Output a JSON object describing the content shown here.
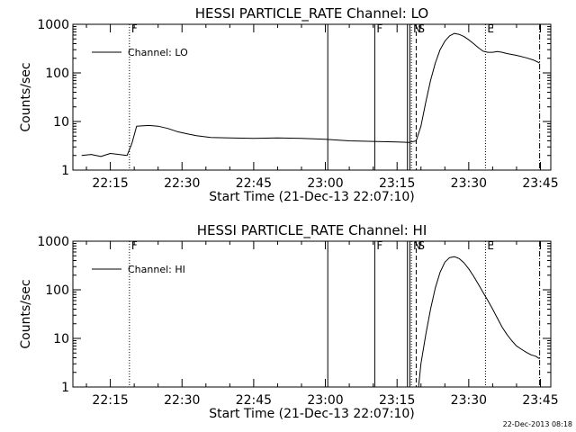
{
  "chart_data": [
    {
      "type": "line",
      "title": "HESSI PARTICLE_RATE Channel: LO",
      "xlabel": "Start Time (21-Dec-13 22:07:10)",
      "ylabel": "Counts/sec",
      "y_scale": "log",
      "ylim": [
        1,
        1000
      ],
      "xlim": [
        "22:07:10",
        "23:47:10"
      ],
      "x_ticks": [
        "22:15",
        "22:30",
        "22:45",
        "23:00",
        "23:15",
        "23:30",
        "23:45"
      ],
      "y_ticks": [
        "1",
        "10",
        "100",
        "1000"
      ],
      "legend": {
        "entries": [
          "Channel: LO"
        ],
        "position": "top-left"
      },
      "grid": false,
      "markers": [
        {
          "time": "22:19:00",
          "label": "F",
          "style": "dotted"
        },
        {
          "time": "23:00:30",
          "label": "",
          "style": "solid"
        },
        {
          "time": "23:10:20",
          "label": "F",
          "style": "solid"
        },
        {
          "time": "23:17:10",
          "label": "",
          "style": "solid"
        },
        {
          "time": "23:17:40",
          "label": "",
          "style": "solid"
        },
        {
          "time": "23:18:00",
          "label": "N",
          "style": "dotted"
        },
        {
          "time": "23:19:00",
          "label": "S",
          "style": "dashed"
        },
        {
          "time": "23:33:30",
          "label": "E",
          "style": "dotted"
        },
        {
          "time": "23:44:50",
          "label": "",
          "style": "dashdot"
        }
      ],
      "series": [
        {
          "name": "Channel: LO",
          "points": [
            [
              "22:09:00",
              2.0
            ],
            [
              "22:11:00",
              2.1
            ],
            [
              "22:13:00",
              1.9
            ],
            [
              "22:15:00",
              2.2
            ],
            [
              "22:18:30",
              2.0
            ],
            [
              "22:19:30",
              3.5
            ],
            [
              "22:20:30",
              8.0
            ],
            [
              "22:23:00",
              8.3
            ],
            [
              "22:25:00",
              8.0
            ],
            [
              "22:27:00",
              7.2
            ],
            [
              "22:29:00",
              6.2
            ],
            [
              "22:31:00",
              5.6
            ],
            [
              "22:33:00",
              5.1
            ],
            [
              "22:36:00",
              4.7
            ],
            [
              "22:40:00",
              4.6
            ],
            [
              "22:45:00",
              4.5
            ],
            [
              "22:50:00",
              4.6
            ],
            [
              "22:55:00",
              4.5
            ],
            [
              "23:00:00",
              4.3
            ],
            [
              "23:05:00",
              4.0
            ],
            [
              "23:10:00",
              3.9
            ],
            [
              "23:15:00",
              3.8
            ],
            [
              "23:17:30",
              3.7
            ],
            [
              "23:19:00",
              4.0
            ],
            [
              "23:20:00",
              8.0
            ],
            [
              "23:21:00",
              25
            ],
            [
              "23:22:00",
              70
            ],
            [
              "23:23:00",
              160
            ],
            [
              "23:24:00",
              300
            ],
            [
              "23:25:00",
              450
            ],
            [
              "23:26:00",
              580
            ],
            [
              "23:27:00",
              650
            ],
            [
              "23:28:00",
              620
            ],
            [
              "23:29:00",
              560
            ],
            [
              "23:30:00",
              480
            ],
            [
              "23:31:00",
              400
            ],
            [
              "23:32:00",
              330
            ],
            [
              "23:33:00",
              280
            ],
            [
              "23:34:00",
              265
            ],
            [
              "23:35:00",
              265
            ],
            [
              "23:36:00",
              275
            ],
            [
              "23:37:00",
              265
            ],
            [
              "23:38:00",
              250
            ],
            [
              "23:40:00",
              230
            ],
            [
              "23:42:00",
              205
            ],
            [
              "23:43:30",
              185
            ],
            [
              "23:44:50",
              160
            ]
          ]
        }
      ]
    },
    {
      "type": "line",
      "title": "HESSI PARTICLE_RATE Channel: HI",
      "xlabel": "Start Time (21-Dec-13 22:07:10)",
      "ylabel": "Counts/sec",
      "y_scale": "log",
      "ylim": [
        1,
        1000
      ],
      "xlim": [
        "22:07:10",
        "23:47:10"
      ],
      "x_ticks": [
        "22:15",
        "22:30",
        "22:45",
        "23:00",
        "23:15",
        "23:30",
        "23:45"
      ],
      "y_ticks": [
        "1",
        "10",
        "100",
        "1000"
      ],
      "legend": {
        "entries": [
          "Channel: HI"
        ],
        "position": "top-left"
      },
      "grid": false,
      "markers": [
        {
          "time": "22:19:00",
          "label": "F",
          "style": "dotted"
        },
        {
          "time": "23:00:30",
          "label": "",
          "style": "solid"
        },
        {
          "time": "23:10:20",
          "label": "F",
          "style": "solid"
        },
        {
          "time": "23:17:10",
          "label": "",
          "style": "solid"
        },
        {
          "time": "23:17:40",
          "label": "",
          "style": "solid"
        },
        {
          "time": "23:18:00",
          "label": "N",
          "style": "dotted"
        },
        {
          "time": "23:19:00",
          "label": "S",
          "style": "dashed"
        },
        {
          "time": "23:33:30",
          "label": "E",
          "style": "dotted"
        },
        {
          "time": "23:44:50",
          "label": "",
          "style": "dashdot"
        }
      ],
      "series": [
        {
          "name": "Channel: HI",
          "points": [
            [
              "23:19:30",
              1.0
            ],
            [
              "23:20:00",
              3.0
            ],
            [
              "23:21:00",
              12
            ],
            [
              "23:22:00",
              40
            ],
            [
              "23:23:00",
              110
            ],
            [
              "23:24:00",
              230
            ],
            [
              "23:25:00",
              370
            ],
            [
              "23:26:00",
              460
            ],
            [
              "23:27:00",
              480
            ],
            [
              "23:28:00",
              440
            ],
            [
              "23:29:00",
              360
            ],
            [
              "23:30:00",
              270
            ],
            [
              "23:31:00",
              190
            ],
            [
              "23:32:00",
              130
            ],
            [
              "23:33:00",
              88
            ],
            [
              "23:34:00",
              60
            ],
            [
              "23:35:00",
              40
            ],
            [
              "23:36:00",
              26
            ],
            [
              "23:37:00",
              17
            ],
            [
              "23:38:00",
              12
            ],
            [
              "23:39:00",
              9.0
            ],
            [
              "23:40:00",
              7.0
            ],
            [
              "23:41:00",
              6.0
            ],
            [
              "23:42:00",
              5.2
            ],
            [
              "23:43:00",
              4.6
            ],
            [
              "23:44:00",
              4.3
            ],
            [
              "23:44:50",
              3.8
            ]
          ]
        }
      ]
    }
  ],
  "footer": {
    "stamp": "22-Dec-2013 08:18"
  },
  "colors": {
    "line": "#000000",
    "background": "#ffffff"
  }
}
